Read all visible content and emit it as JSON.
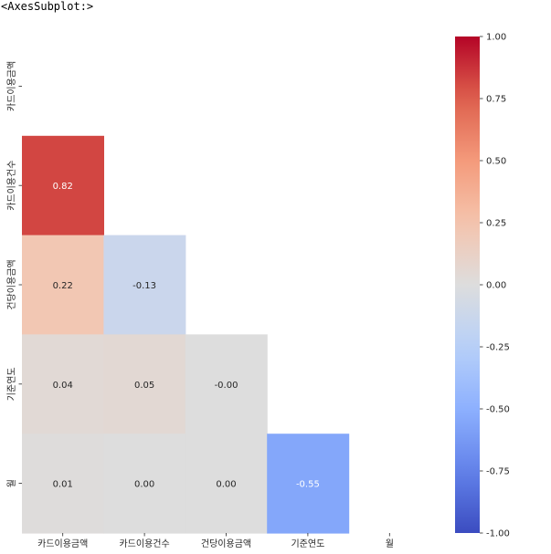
{
  "output_label": "<AxesSubplot:>",
  "chart_data": {
    "type": "heatmap",
    "labels": [
      "카드이용금액",
      "카드이용건수",
      "건당이용금액",
      "기준연도",
      "월"
    ],
    "mask": "upper-triangle-including-diagonal",
    "values": [
      [
        null,
        null,
        null,
        null,
        null
      ],
      [
        0.82,
        null,
        null,
        null,
        null
      ],
      [
        0.22,
        -0.13,
        null,
        null,
        null
      ],
      [
        0.04,
        0.05,
        -0.0,
        null,
        null
      ],
      [
        0.01,
        0.0,
        0.0,
        -0.55,
        null
      ]
    ],
    "value_labels": [
      [
        null,
        null,
        null,
        null,
        null
      ],
      [
        "0.82",
        null,
        null,
        null,
        null
      ],
      [
        "0.22",
        "-0.13",
        null,
        null,
        null
      ],
      [
        "0.04",
        "0.05",
        "-0.00",
        null,
        null
      ],
      [
        "0.01",
        "0.00",
        "0.00",
        "-0.55",
        null
      ]
    ],
    "colormap": "coolwarm",
    "vmin": -1.0,
    "vmax": 1.0,
    "colorbar_ticks": [
      "1.00",
      "0.75",
      "0.50",
      "0.25",
      "0.00",
      "-0.25",
      "-0.50",
      "-0.75",
      "-1.00"
    ],
    "colors": {
      "low": "#3b4cc0",
      "mid": "#dddddd",
      "high": "#b40426"
    }
  }
}
